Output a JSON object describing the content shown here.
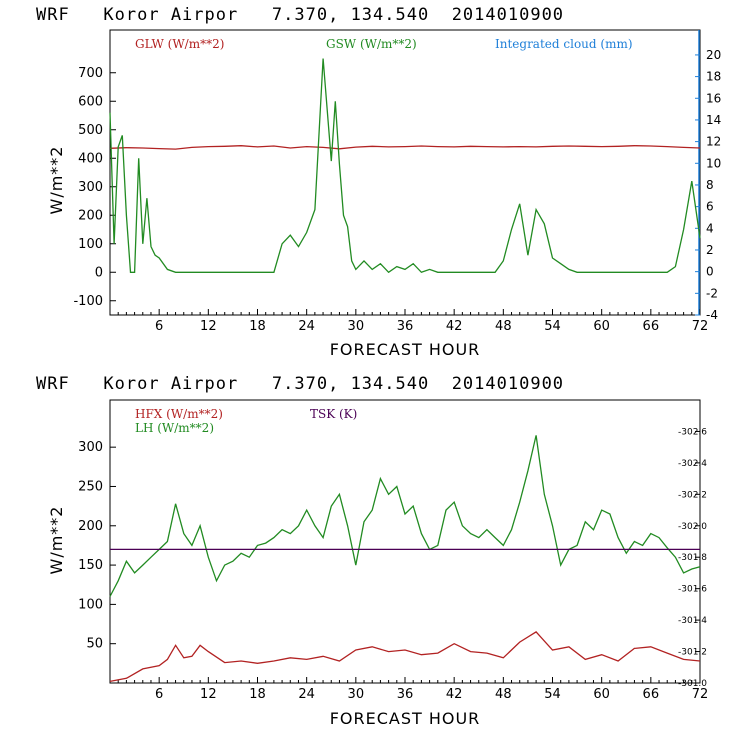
{
  "chart_data": [
    {
      "type": "line",
      "title": "WRF   Koror Airpor   7.370, 134.540  2014010900",
      "xlabel": "FORECAST HOUR",
      "ylabel": "W/m**2",
      "xlim": [
        0,
        72
      ],
      "ylim": [
        -150,
        850
      ],
      "y2lim": [
        -4,
        22.3
      ],
      "xticks": [
        "6",
        "12",
        "18",
        "24",
        "30",
        "36",
        "42",
        "48",
        "54",
        "60",
        "66",
        "72"
      ],
      "yticks": [
        "-100",
        "0",
        "100",
        "200",
        "300",
        "400",
        "500",
        "600",
        "700"
      ],
      "y2ticks": [
        "-4",
        "-2",
        "0",
        "2",
        "4",
        "6",
        "8",
        "10",
        "12",
        "14",
        "16",
        "18",
        "20"
      ],
      "series": [
        {
          "name": "GLW (W/m**2)",
          "axis": "left",
          "color": "#b22222",
          "x": [
            0,
            2,
            4,
            6,
            8,
            10,
            12,
            14,
            16,
            18,
            20,
            22,
            24,
            26,
            28,
            30,
            32,
            34,
            36,
            38,
            40,
            42,
            44,
            46,
            48,
            50,
            52,
            54,
            56,
            58,
            60,
            62,
            64,
            66,
            68,
            70,
            72
          ],
          "y": [
            435,
            437,
            436,
            434,
            432,
            438,
            441,
            442,
            444,
            440,
            443,
            436,
            441,
            438,
            433,
            439,
            442,
            440,
            441,
            443,
            441,
            440,
            442,
            441,
            440,
            441,
            440,
            442,
            443,
            442,
            441,
            442,
            444,
            443,
            441,
            438,
            436
          ]
        },
        {
          "name": "GSW (W/m**2)",
          "axis": "left",
          "color": "#228b22",
          "x": [
            0,
            0.5,
            1,
            1.5,
            2,
            2.5,
            3,
            3.5,
            4,
            4.5,
            5,
            5.5,
            6,
            7,
            8,
            9,
            10,
            12,
            14,
            16,
            18,
            20,
            21,
            22,
            23,
            24,
            25,
            26,
            27,
            27.5,
            28,
            28.5,
            29,
            29.5,
            30,
            31,
            32,
            33,
            34,
            35,
            36,
            37,
            38,
            39,
            40,
            41,
            42,
            43,
            44,
            45,
            46,
            47,
            48,
            49,
            50,
            51,
            52,
            53,
            54,
            55,
            56,
            57,
            58,
            60,
            62,
            64,
            66,
            68,
            69,
            70,
            71,
            72
          ],
          "y": [
            560,
            100,
            440,
            480,
            200,
            0,
            0,
            400,
            100,
            260,
            90,
            60,
            50,
            10,
            0,
            0,
            0,
            0,
            0,
            0,
            0,
            0,
            100,
            130,
            90,
            140,
            220,
            750,
            390,
            600,
            380,
            200,
            160,
            40,
            10,
            40,
            10,
            30,
            0,
            20,
            10,
            30,
            0,
            10,
            0,
            0,
            0,
            0,
            0,
            0,
            0,
            0,
            40,
            150,
            240,
            60,
            220,
            170,
            50,
            30,
            10,
            0,
            0,
            0,
            0,
            0,
            0,
            0,
            20,
            150,
            320,
            120
          ]
        }
      ]
    },
    {
      "type": "line",
      "title": "WRF   Koror Airpor   7.370, 134.540  2014010900",
      "xlabel": "FORECAST HOUR",
      "ylabel": "W/m**2",
      "xlim": [
        0,
        72
      ],
      "ylim": [
        0,
        360
      ],
      "y2lim": [
        301.0,
        302.8
      ],
      "xticks": [
        "6",
        "12",
        "18",
        "24",
        "30",
        "36",
        "42",
        "48",
        "54",
        "60",
        "66",
        "72"
      ],
      "yticks": [
        "50",
        "100",
        "150",
        "200",
        "250",
        "300"
      ],
      "y2ticks": [
        "301.0",
        "301.2",
        "301.4",
        "301.6",
        "301.8",
        "302.0",
        "302.2",
        "302.4",
        "302.6"
      ],
      "series": [
        {
          "name": "HFX (W/m**2)",
          "color": "#b22222",
          "x": [
            0,
            2,
            4,
            6,
            7,
            8,
            9,
            10,
            11,
            12,
            14,
            16,
            18,
            20,
            22,
            24,
            26,
            28,
            30,
            32,
            34,
            36,
            38,
            40,
            42,
            44,
            46,
            48,
            50,
            52,
            54,
            56,
            58,
            60,
            62,
            64,
            66,
            68,
            70,
            72
          ],
          "y": [
            2,
            6,
            18,
            22,
            30,
            48,
            32,
            34,
            48,
            40,
            26,
            28,
            25,
            28,
            32,
            30,
            34,
            28,
            42,
            46,
            40,
            42,
            36,
            38,
            50,
            40,
            38,
            32,
            52,
            65,
            42,
            46,
            30,
            36,
            28,
            44,
            46,
            38,
            30,
            28
          ]
        },
        {
          "name": "LH (W/m**2)",
          "color": "#228b22",
          "x": [
            0,
            1,
            2,
            3,
            4,
            5,
            6,
            7,
            8,
            9,
            10,
            11,
            12,
            13,
            14,
            15,
            16,
            17,
            18,
            19,
            20,
            21,
            22,
            23,
            24,
            25,
            26,
            27,
            28,
            29,
            30,
            31,
            32,
            33,
            34,
            35,
            36,
            37,
            38,
            39,
            40,
            41,
            42,
            43,
            44,
            45,
            46,
            47,
            48,
            49,
            50,
            51,
            52,
            53,
            54,
            55,
            56,
            57,
            58,
            59,
            60,
            61,
            62,
            63,
            64,
            65,
            66,
            67,
            68,
            69,
            70,
            71,
            72
          ],
          "y": [
            110,
            130,
            155,
            140,
            150,
            160,
            170,
            180,
            228,
            190,
            175,
            200,
            160,
            130,
            150,
            155,
            165,
            160,
            175,
            178,
            185,
            195,
            190,
            200,
            220,
            200,
            185,
            225,
            240,
            200,
            150,
            205,
            220,
            260,
            240,
            250,
            215,
            225,
            190,
            170,
            175,
            220,
            230,
            200,
            190,
            185,
            195,
            185,
            175,
            195,
            230,
            270,
            315,
            240,
            200,
            150,
            170,
            175,
            205,
            195,
            220,
            215,
            185,
            165,
            180,
            175,
            190,
            185,
            172,
            160,
            140,
            145,
            148
          ]
        },
        {
          "name": "TSK (K)",
          "color": "#4b0055",
          "axis": "right",
          "x": [
            0,
            72
          ],
          "y": [
            301.85,
            301.85
          ]
        }
      ]
    }
  ]
}
